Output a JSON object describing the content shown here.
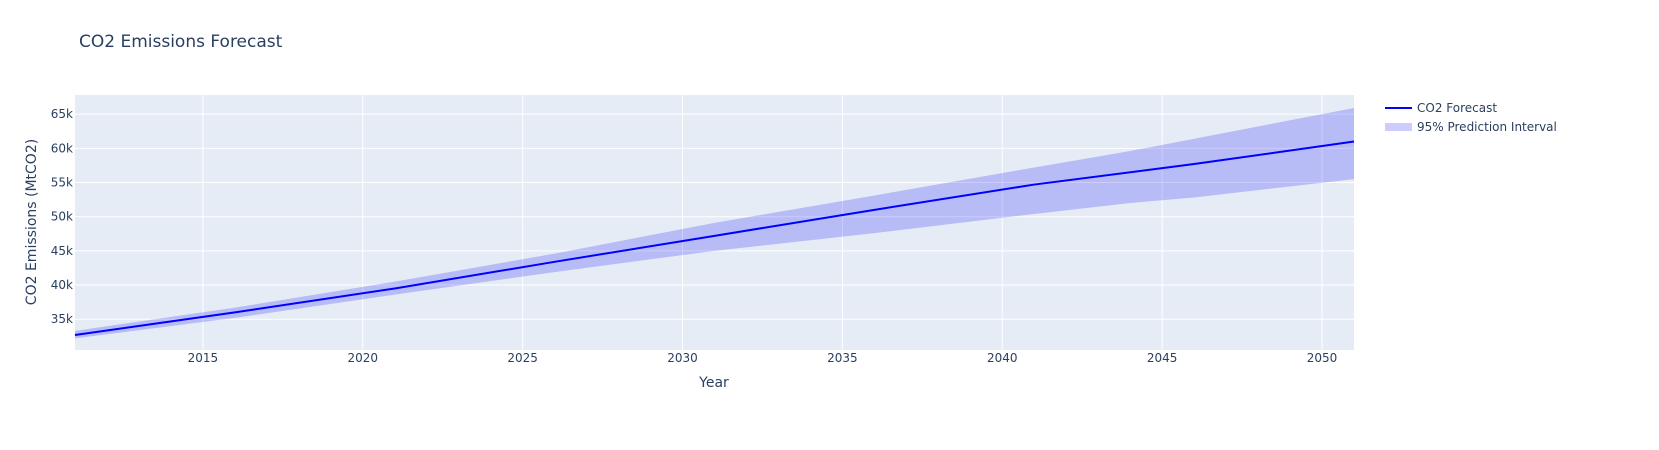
{
  "chart_data": {
    "type": "line",
    "title": "CO2 Emissions Forecast",
    "xlabel": "Year",
    "ylabel": "CO2 Emissions (MtCO2)",
    "xlim": [
      2011,
      2051
    ],
    "ylim": [
      30500,
      67800
    ],
    "xticks": [
      2015,
      2020,
      2025,
      2030,
      2035,
      2040,
      2045,
      2050
    ],
    "yticks": [
      35000,
      40000,
      45000,
      50000,
      55000,
      60000,
      65000
    ],
    "ytick_labels": [
      "35k",
      "40k",
      "45k",
      "50k",
      "55k",
      "60k",
      "65k"
    ],
    "grid": true,
    "legend_position": "top-right",
    "series": [
      {
        "name": "CO2 Forecast",
        "kind": "line",
        "color": "#0000ff",
        "x": [
          2011,
          2016,
          2021,
          2026,
          2031,
          2036,
          2041,
          2046,
          2051
        ],
        "y": [
          32700,
          36000,
          39500,
          43400,
          47200,
          51000,
          54700,
          57700,
          61000
        ]
      },
      {
        "name": "95% Prediction Interval",
        "kind": "band",
        "color": "rgba(0,0,255,0.2)",
        "x": [
          2011,
          2016,
          2021,
          2026,
          2031,
          2036,
          2041,
          2044,
          2046,
          2051
        ],
        "upper": [
          33300,
          36700,
          40500,
          44600,
          49100,
          53100,
          57200,
          59600,
          61400,
          65900
        ],
        "lower": [
          32200,
          35200,
          38600,
          41900,
          45000,
          47600,
          50400,
          52000,
          52800,
          55500
        ]
      }
    ]
  },
  "colors": {
    "plot_bg": "#e5ecf6",
    "grid": "#ffffff",
    "text": "#2a3f5f",
    "forecast": "#0000ff",
    "band": "rgba(0,0,255,0.2)"
  }
}
